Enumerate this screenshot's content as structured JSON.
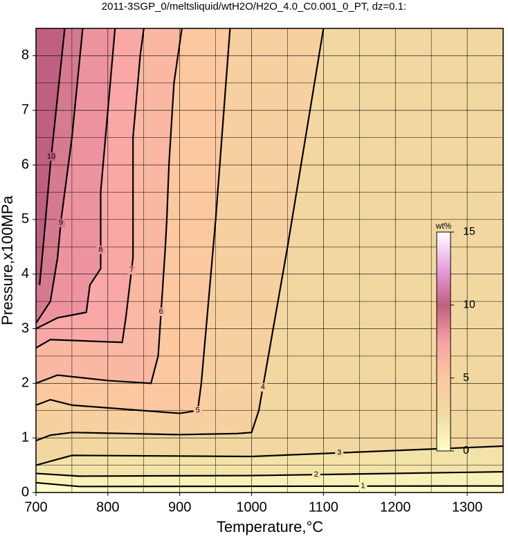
{
  "chart_data": {
    "type": "contour",
    "title": "2011-3SGP_0/meltsliquid/wtH2O/H2O_4.0_C0.001_0_PT, dz=0.1:",
    "xlabel": "Temperature,°C",
    "ylabel": "Pressure,x100MPa",
    "xlim": [
      700,
      1350
    ],
    "ylim": [
      0,
      8.5
    ],
    "xticks": [
      700,
      800,
      900,
      1000,
      1100,
      1200,
      1300
    ],
    "yticks": [
      0,
      1,
      2,
      3,
      4,
      5,
      6,
      7,
      8
    ],
    "minor_xticks": [
      750,
      850,
      950,
      1050,
      1150,
      1250,
      1350
    ],
    "minor_yticks": [
      0.5,
      1.5,
      2.5,
      3.5,
      4.5,
      5.5,
      6.5,
      7.5,
      8.5
    ],
    "grid": true,
    "colormap": [
      "#ffffc8",
      "#f0dca0",
      "#fcc8a0",
      "#f8a0a8",
      "#c06080",
      "#e8a0e0",
      "#ffffff"
    ],
    "colorbar": {
      "label": "wt%",
      "lim": [
        0,
        15
      ],
      "ticks": [
        0,
        5,
        10,
        15
      ]
    },
    "contours": [
      {
        "level": 1,
        "x": [
          700,
          760,
          1350
        ],
        "y": [
          0.18,
          0.11,
          0.12
        ]
      },
      {
        "level": 2,
        "x": [
          700,
          760,
          1000,
          1350
        ],
        "y": [
          0.35,
          0.3,
          0.31,
          0.38
        ]
      },
      {
        "level": 3,
        "x": [
          700,
          750,
          1000,
          1350
        ],
        "y": [
          0.5,
          0.68,
          0.66,
          0.85
        ]
      },
      {
        "level": 4,
        "x": [
          700,
          720,
          750,
          900,
          980,
          1000,
          1010,
          1050,
          1100
        ],
        "y": [
          0.95,
          1.05,
          1.1,
          1.06,
          1.08,
          1.1,
          1.5,
          4.5,
          8.5
        ]
      },
      {
        "level": 5,
        "x": [
          700,
          720,
          750,
          900,
          925,
          930,
          950,
          970
        ],
        "y": [
          1.6,
          1.7,
          1.6,
          1.45,
          1.5,
          2.0,
          5,
          8.5
        ]
      },
      {
        "level": 6,
        "x": [
          700,
          730,
          800,
          860,
          870,
          880,
          882,
          885,
          892,
          903
        ],
        "y": [
          2.0,
          2.15,
          2.05,
          2.0,
          2.5,
          4.5,
          5,
          6,
          7.5,
          8.5
        ]
      },
      {
        "level": 7,
        "x": [
          700,
          720,
          820,
          825,
          835,
          835,
          845,
          850
        ],
        "y": [
          2.65,
          2.8,
          2.75,
          3.2,
          4.3,
          6.5,
          8,
          8.5
        ]
      },
      {
        "level": 8,
        "x": [
          700,
          730,
          770,
          775,
          790,
          790,
          800,
          810
        ],
        "y": [
          3.0,
          3.2,
          3.3,
          3.8,
          4.1,
          5.5,
          7,
          8.5
        ]
      },
      {
        "level": 9,
        "x": [
          700,
          720,
          730,
          735,
          750,
          765
        ],
        "y": [
          3.1,
          3.5,
          4.3,
          5,
          6.5,
          8.5
        ]
      },
      {
        "level": 10,
        "x": [
          705,
          710,
          720,
          740
        ],
        "y": [
          3.8,
          4.5,
          6,
          8.5
        ]
      }
    ]
  }
}
